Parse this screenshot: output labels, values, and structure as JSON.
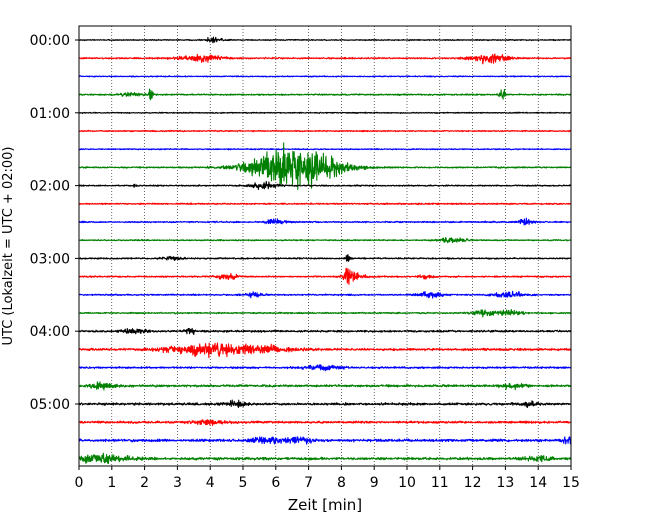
{
  "chart_data": {
    "type": "line",
    "title": "",
    "xlabel": "Zeit  [min]",
    "ylabel": "UTC (Lokalzeit = UTC + 02:00)",
    "xlim": [
      0,
      15
    ],
    "xticks": [
      0,
      1,
      2,
      3,
      4,
      5,
      6,
      7,
      8,
      9,
      10,
      11,
      12,
      13,
      14,
      15
    ],
    "grid": "vertical dotted lines at each minute",
    "trace_interval_minutes": 15,
    "color_cycle": [
      "black",
      "red",
      "blue",
      "green"
    ],
    "y_tick_labels": [
      {
        "label": "00:00",
        "trace_index": 0
      },
      {
        "label": "01:00",
        "trace_index": 4
      },
      {
        "label": "02:00",
        "trace_index": 8
      },
      {
        "label": "03:00",
        "trace_index": 12
      },
      {
        "label": "04:00",
        "trace_index": 16
      },
      {
        "label": "05:00",
        "trace_index": 20
      }
    ],
    "traces": [
      {
        "start": "00:00",
        "color": "#000000",
        "noise": 0.06,
        "events": [
          {
            "t": 4.1,
            "amp": 0.28,
            "dur": 0.35
          }
        ]
      },
      {
        "start": "00:15",
        "color": "#ff0000",
        "noise": 0.08,
        "events": [
          {
            "t": 3.7,
            "amp": 0.45,
            "dur": 0.9
          },
          {
            "t": 12.5,
            "amp": 0.55,
            "dur": 0.8
          }
        ]
      },
      {
        "start": "00:30",
        "color": "#0000ff",
        "noise": 0.06,
        "events": []
      },
      {
        "start": "00:45",
        "color": "#008000",
        "noise": 0.08,
        "events": [
          {
            "t": 1.6,
            "amp": 0.18,
            "dur": 0.5
          },
          {
            "t": 2.2,
            "amp": 1.35,
            "dur": 0.08
          },
          {
            "t": 12.9,
            "amp": 0.9,
            "dur": 0.12
          }
        ]
      },
      {
        "start": "01:00",
        "color": "#000000",
        "noise": 0.06,
        "events": []
      },
      {
        "start": "01:15",
        "color": "#ff0000",
        "noise": 0.07,
        "events": []
      },
      {
        "start": "01:30",
        "color": "#0000ff",
        "noise": 0.06,
        "events": []
      },
      {
        "start": "01:45",
        "color": "#008000",
        "noise": 0.08,
        "events": [
          {
            "t": 6.6,
            "amp": 2.3,
            "dur": 1.8
          }
        ]
      },
      {
        "start": "02:00",
        "color": "#000000",
        "noise": 0.07,
        "events": [
          {
            "t": 1.7,
            "amp": 0.3,
            "dur": 0.08
          },
          {
            "t": 5.6,
            "amp": 0.35,
            "dur": 0.6
          }
        ]
      },
      {
        "start": "02:15",
        "color": "#ff0000",
        "noise": 0.08,
        "events": []
      },
      {
        "start": "02:30",
        "color": "#0000ff",
        "noise": 0.08,
        "events": [
          {
            "t": 6.0,
            "amp": 0.3,
            "dur": 0.4
          },
          {
            "t": 13.6,
            "amp": 0.35,
            "dur": 0.3
          }
        ]
      },
      {
        "start": "02:45",
        "color": "#008000",
        "noise": 0.07,
        "events": [
          {
            "t": 11.4,
            "amp": 0.28,
            "dur": 0.6
          }
        ]
      },
      {
        "start": "03:00",
        "color": "#000000",
        "noise": 0.08,
        "events": [
          {
            "t": 2.8,
            "amp": 0.2,
            "dur": 0.4
          },
          {
            "t": 8.2,
            "amp": 0.55,
            "dur": 0.1
          }
        ]
      },
      {
        "start": "03:15",
        "color": "#ff0000",
        "noise": 0.08,
        "events": [
          {
            "t": 4.5,
            "amp": 0.3,
            "dur": 0.5
          },
          {
            "t": 8.2,
            "amp": 1.2,
            "dur": 0.15
          },
          {
            "t": 8.4,
            "amp": 0.4,
            "dur": 0.5
          },
          {
            "t": 10.6,
            "amp": 0.25,
            "dur": 0.3
          }
        ]
      },
      {
        "start": "03:30",
        "color": "#0000ff",
        "noise": 0.08,
        "events": [
          {
            "t": 5.3,
            "amp": 0.25,
            "dur": 0.4
          },
          {
            "t": 10.7,
            "amp": 0.35,
            "dur": 0.5
          },
          {
            "t": 13.1,
            "amp": 0.35,
            "dur": 0.6
          }
        ]
      },
      {
        "start": "03:45",
        "color": "#008000",
        "noise": 0.08,
        "events": [
          {
            "t": 12.4,
            "amp": 0.35,
            "dur": 0.6
          },
          {
            "t": 13.2,
            "amp": 0.3,
            "dur": 0.5
          }
        ]
      },
      {
        "start": "04:00",
        "color": "#000000",
        "noise": 0.1,
        "events": [
          {
            "t": 1.7,
            "amp": 0.28,
            "dur": 0.5
          },
          {
            "t": 3.4,
            "amp": 0.4,
            "dur": 0.2
          }
        ]
      },
      {
        "start": "04:15",
        "color": "#ff0000",
        "noise": 0.12,
        "events": [
          {
            "t": 3.9,
            "amp": 0.75,
            "dur": 1.6
          },
          {
            "t": 5.8,
            "amp": 0.3,
            "dur": 1.2
          }
        ]
      },
      {
        "start": "04:30",
        "color": "#0000ff",
        "noise": 0.1,
        "events": [
          {
            "t": 7.4,
            "amp": 0.3,
            "dur": 0.8
          }
        ]
      },
      {
        "start": "04:45",
        "color": "#008000",
        "noise": 0.12,
        "events": [
          {
            "t": 0.7,
            "amp": 0.3,
            "dur": 0.6
          },
          {
            "t": 13.2,
            "amp": 0.3,
            "dur": 0.5
          }
        ]
      },
      {
        "start": "05:00",
        "color": "#000000",
        "noise": 0.13,
        "events": [
          {
            "t": 4.8,
            "amp": 0.3,
            "dur": 0.5
          },
          {
            "t": 13.8,
            "amp": 0.3,
            "dur": 0.3
          }
        ]
      },
      {
        "start": "05:15",
        "color": "#ff0000",
        "noise": 0.12,
        "events": [
          {
            "t": 3.9,
            "amp": 0.3,
            "dur": 0.6
          }
        ]
      },
      {
        "start": "05:30",
        "color": "#0000ff",
        "noise": 0.14,
        "events": [
          {
            "t": 5.7,
            "amp": 0.35,
            "dur": 0.6
          },
          {
            "t": 6.7,
            "amp": 0.3,
            "dur": 0.6
          },
          {
            "t": 14.9,
            "amp": 0.3,
            "dur": 0.3
          }
        ]
      },
      {
        "start": "05:45",
        "color": "#008000",
        "noise": 0.14,
        "events": [
          {
            "t": 0.7,
            "amp": 0.45,
            "dur": 1.2
          },
          {
            "t": 14.0,
            "amp": 0.3,
            "dur": 0.5
          }
        ]
      }
    ]
  }
}
